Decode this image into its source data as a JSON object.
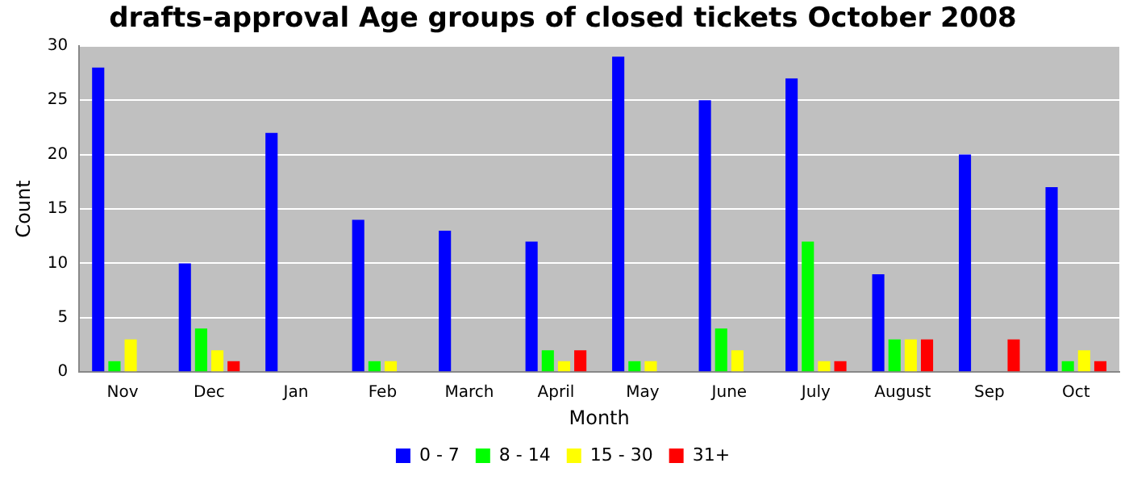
{
  "chart_data": {
    "type": "bar",
    "title": "drafts-approval Age groups of closed tickets October 2008",
    "xlabel": "Month",
    "ylabel": "Count",
    "categories": [
      "Nov",
      "Dec",
      "Jan",
      "Feb",
      "March",
      "April",
      "May",
      "June",
      "July",
      "August",
      "Sep",
      "Oct"
    ],
    "series": [
      {
        "name": "0 - 7",
        "color": "#0000ff",
        "values": [
          28,
          10,
          22,
          14,
          13,
          12,
          29,
          25,
          27,
          9,
          20,
          17
        ]
      },
      {
        "name": "8 - 14",
        "color": "#00ff00",
        "values": [
          1,
          4,
          0,
          1,
          0,
          2,
          1,
          4,
          12,
          3,
          0,
          1
        ]
      },
      {
        "name": "15 - 30",
        "color": "#ffff00",
        "values": [
          3,
          2,
          0,
          1,
          0,
          1,
          1,
          2,
          1,
          3,
          0,
          2
        ]
      },
      {
        "name": "31+",
        "color": "#ff0000",
        "values": [
          0,
          1,
          0,
          0,
          0,
          2,
          0,
          0,
          1,
          3,
          3,
          1
        ]
      }
    ],
    "ylim": [
      0,
      30
    ],
    "yticks": [
      0,
      5,
      10,
      15,
      20,
      25,
      30
    ],
    "grid": "y",
    "legend": "bottom"
  }
}
